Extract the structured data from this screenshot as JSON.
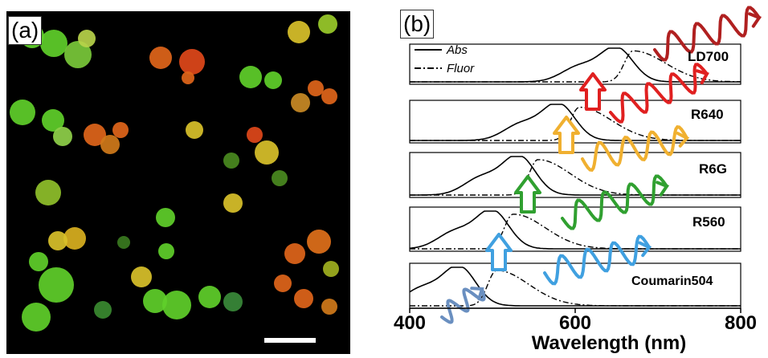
{
  "figure": {
    "panel_a_label": "(a)",
    "panel_b_label": "(b)"
  },
  "legend": {
    "abs": "Abs",
    "fluor": "Fluor"
  },
  "dyes": [
    "LD700",
    "R640",
    "R6G",
    "R560",
    "Coumarin504"
  ],
  "chart_data": {
    "type": "line",
    "xlabel": "Wavelength (nm)",
    "xlim": [
      400,
      800
    ],
    "x_ticks": [
      400,
      600,
      800
    ],
    "panels": [
      {
        "dye": "LD700",
        "abs_peak": 650,
        "fluor_peak": 670
      },
      {
        "dye": "R640",
        "abs_peak": 580,
        "fluor_peak": 605
      },
      {
        "dye": "R6G",
        "abs_peak": 532,
        "fluor_peak": 555
      },
      {
        "dye": "R560",
        "abs_peak": 500,
        "fluor_peak": 525
      },
      {
        "dye": "Coumarin504",
        "abs_peak": 460,
        "fluor_peak": 505
      }
    ],
    "series_styles": {
      "abs": "solid",
      "fluor": "dash-dot"
    }
  },
  "colors": {
    "microscope_bg": "#000000",
    "droplet_green": "#5fcf2a",
    "droplet_orange": "#e0651a",
    "droplet_yellow": "#d9c12a",
    "arrow_red": "#e02020",
    "arrow_orange": "#f0b030",
    "arrow_green": "#30a030",
    "arrow_blue": "#40a0e0",
    "arrow_slate": "#6a8fc0",
    "arrow_darkred": "#b02020"
  }
}
